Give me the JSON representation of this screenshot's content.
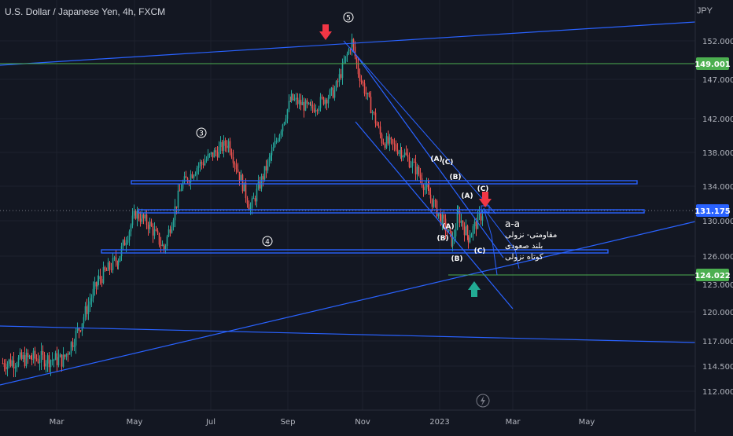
{
  "header": {
    "symbol_title": "U.S. Dollar / Japanese Yen, 4h, FXCM",
    "currency": "JPY"
  },
  "colors": {
    "background": "#131722",
    "up_candle": "#26a69a",
    "down_candle": "#ef5350",
    "trendline": "#2962ff",
    "hline_green": "#4caf50",
    "price_badge_green": "#4caf50",
    "price_badge_blue": "#2962ff",
    "down_arrow": "#f23645",
    "up_arrow": "#22ab94"
  },
  "chart_data": {
    "type": "candlestick",
    "symbol": "USDJPY",
    "timeframe": "4h",
    "x_tick_labels": [
      "Mar",
      "May",
      "Jul",
      "Sep",
      "Nov",
      "2023",
      "Mar",
      "May"
    ],
    "y_tick_labels": [
      "152.000",
      "147.000",
      "142.000",
      "138.000",
      "134.000",
      "130.000",
      "126.000",
      "123.000",
      "120.000",
      "117.000",
      "114.500",
      "112.000"
    ],
    "y_ticks": [
      152.0,
      147.0,
      142.0,
      138.0,
      134.0,
      130.0,
      126.0,
      123.0,
      120.0,
      117.0,
      114.5,
      112.0
    ],
    "price_labels": [
      {
        "text": "149.001",
        "value": 149.001,
        "color": "green"
      },
      {
        "text": "131.175",
        "value": 131.175,
        "color": "blue"
      },
      {
        "text": "124.022",
        "value": 124.022,
        "color": "green"
      }
    ],
    "price_path": [
      {
        "x": "Feb 02",
        "y": 114.8
      },
      {
        "x": "Feb 15",
        "y": 115.3
      },
      {
        "x": "Mar 02",
        "y": 115.1
      },
      {
        "x": "Mar 15",
        "y": 118.3
      },
      {
        "x": "Mar 28",
        "y": 123.5
      },
      {
        "x": "Apr 12",
        "y": 125.8
      },
      {
        "x": "Apr 28",
        "y": 130.9
      },
      {
        "x": "May 12",
        "y": 129.5
      },
      {
        "x": "May 24",
        "y": 126.8
      },
      {
        "x": "Jun 08",
        "y": 134.0
      },
      {
        "x": "Jun 22",
        "y": 136.3
      },
      {
        "x": "Jul 14",
        "y": 139.2
      },
      {
        "x": "Aug 02",
        "y": 131.4
      },
      {
        "x": "Aug 26",
        "y": 137.8
      },
      {
        "x": "Sep 07",
        "y": 144.5
      },
      {
        "x": "Sep 22",
        "y": 143.2
      },
      {
        "x": "Oct 07",
        "y": 145.5
      },
      {
        "x": "Oct 21",
        "y": 151.9
      },
      {
        "x": "Nov 02",
        "y": 148.0
      },
      {
        "x": "Nov 11",
        "y": 139.5
      },
      {
        "x": "Nov 29",
        "y": 138.2
      },
      {
        "x": "Dec 16",
        "y": 135.8
      },
      {
        "x": "Dec 28",
        "y": 133.0
      },
      {
        "x": "Jan 03",
        "y": 130.3
      },
      {
        "x": "Jan 16",
        "y": 127.6
      },
      {
        "x": "Jan 25",
        "y": 130.7
      },
      {
        "x": "Feb 02",
        "y": 128.2
      },
      {
        "x": "Feb 10",
        "y": 131.2
      }
    ],
    "wave_labels": [
      "5",
      "3",
      "4",
      "(A)",
      "(C)",
      "(B)",
      "(A)",
      "(C)",
      "(A)",
      "(B)",
      "(C)",
      "(B)"
    ],
    "annotations": [
      "a-a",
      "مقاومتی-  نزولی",
      "بلند صعودی",
      "کوتاه نزولی"
    ]
  }
}
